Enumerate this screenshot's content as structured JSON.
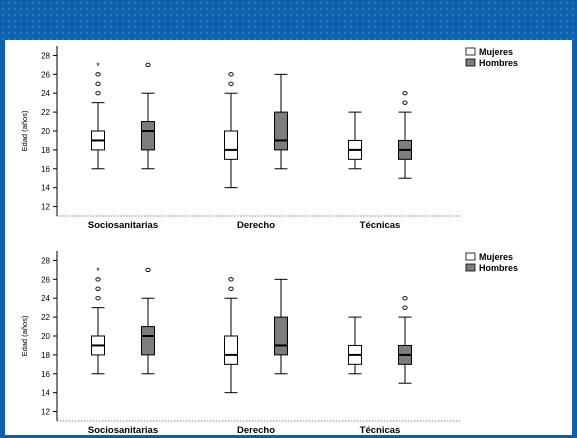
{
  "colors": {
    "frame": "#0c5fa8",
    "female_box": "#ffffff",
    "male_box": "#7d7d7d"
  },
  "chart_data": [
    {
      "type": "box",
      "ylabel": "Edad (años)",
      "ylim": [
        11,
        29
      ],
      "yticks": [
        12,
        14,
        16,
        18,
        20,
        22,
        24,
        26,
        28
      ],
      "categories": [
        "Sociosanitarias",
        "Derecho",
        "Técnicas"
      ],
      "legend": {
        "position": "top-right",
        "entries": [
          "Mujeres",
          "Hombres"
        ]
      },
      "series": [
        {
          "name": "Mujeres",
          "boxes": [
            {
              "min": 16,
              "q1": 18,
              "median": 19,
              "q3": 20,
              "max": 23,
              "outliers": [
                24,
                25,
                26
              ],
              "extremes": [
                27
              ]
            },
            {
              "min": 14,
              "q1": 17,
              "median": 18,
              "q3": 20,
              "max": 24,
              "outliers": [
                25,
                26
              ],
              "extremes": []
            },
            {
              "min": 16,
              "q1": 17,
              "median": 18,
              "q3": 19,
              "max": 22,
              "outliers": [],
              "extremes": []
            }
          ]
        },
        {
          "name": "Hombres",
          "boxes": [
            {
              "min": 16,
              "q1": 18,
              "median": 20,
              "q3": 21,
              "max": 24,
              "outliers": [
                27
              ],
              "extremes": []
            },
            {
              "min": 16,
              "q1": 18,
              "median": 19,
              "q3": 22,
              "max": 26,
              "outliers": [],
              "extremes": []
            },
            {
              "min": 15,
              "q1": 17,
              "median": 18,
              "q3": 19,
              "max": 22,
              "outliers": [
                23,
                24
              ],
              "extremes": []
            }
          ]
        }
      ]
    },
    {
      "type": "box",
      "ylabel": "Edad (años)",
      "ylim": [
        11,
        29
      ],
      "yticks": [
        12,
        14,
        16,
        18,
        20,
        22,
        24,
        26,
        28
      ],
      "categories": [
        "Sociosanitarias",
        "Derecho",
        "Técnicas"
      ],
      "legend": {
        "position": "top-right",
        "entries": [
          "Mujeres",
          "Hombres"
        ]
      },
      "series": [
        {
          "name": "Mujeres",
          "boxes": [
            {
              "min": 16,
              "q1": 18,
              "median": 19,
              "q3": 20,
              "max": 23,
              "outliers": [
                24,
                25,
                26
              ],
              "extremes": [
                27
              ]
            },
            {
              "min": 14,
              "q1": 17,
              "median": 18,
              "q3": 20,
              "max": 24,
              "outliers": [
                25,
                26
              ],
              "extremes": []
            },
            {
              "min": 16,
              "q1": 17,
              "median": 18,
              "q3": 19,
              "max": 22,
              "outliers": [],
              "extremes": []
            }
          ]
        },
        {
          "name": "Hombres",
          "boxes": [
            {
              "min": 16,
              "q1": 18,
              "median": 20,
              "q3": 21,
              "max": 24,
              "outliers": [
                27
              ],
              "extremes": []
            },
            {
              "min": 16,
              "q1": 18,
              "median": 19,
              "q3": 22,
              "max": 26,
              "outliers": [],
              "extremes": []
            },
            {
              "min": 15,
              "q1": 17,
              "median": 18,
              "q3": 19,
              "max": 22,
              "outliers": [
                23,
                24
              ],
              "extremes": []
            }
          ]
        }
      ]
    }
  ]
}
